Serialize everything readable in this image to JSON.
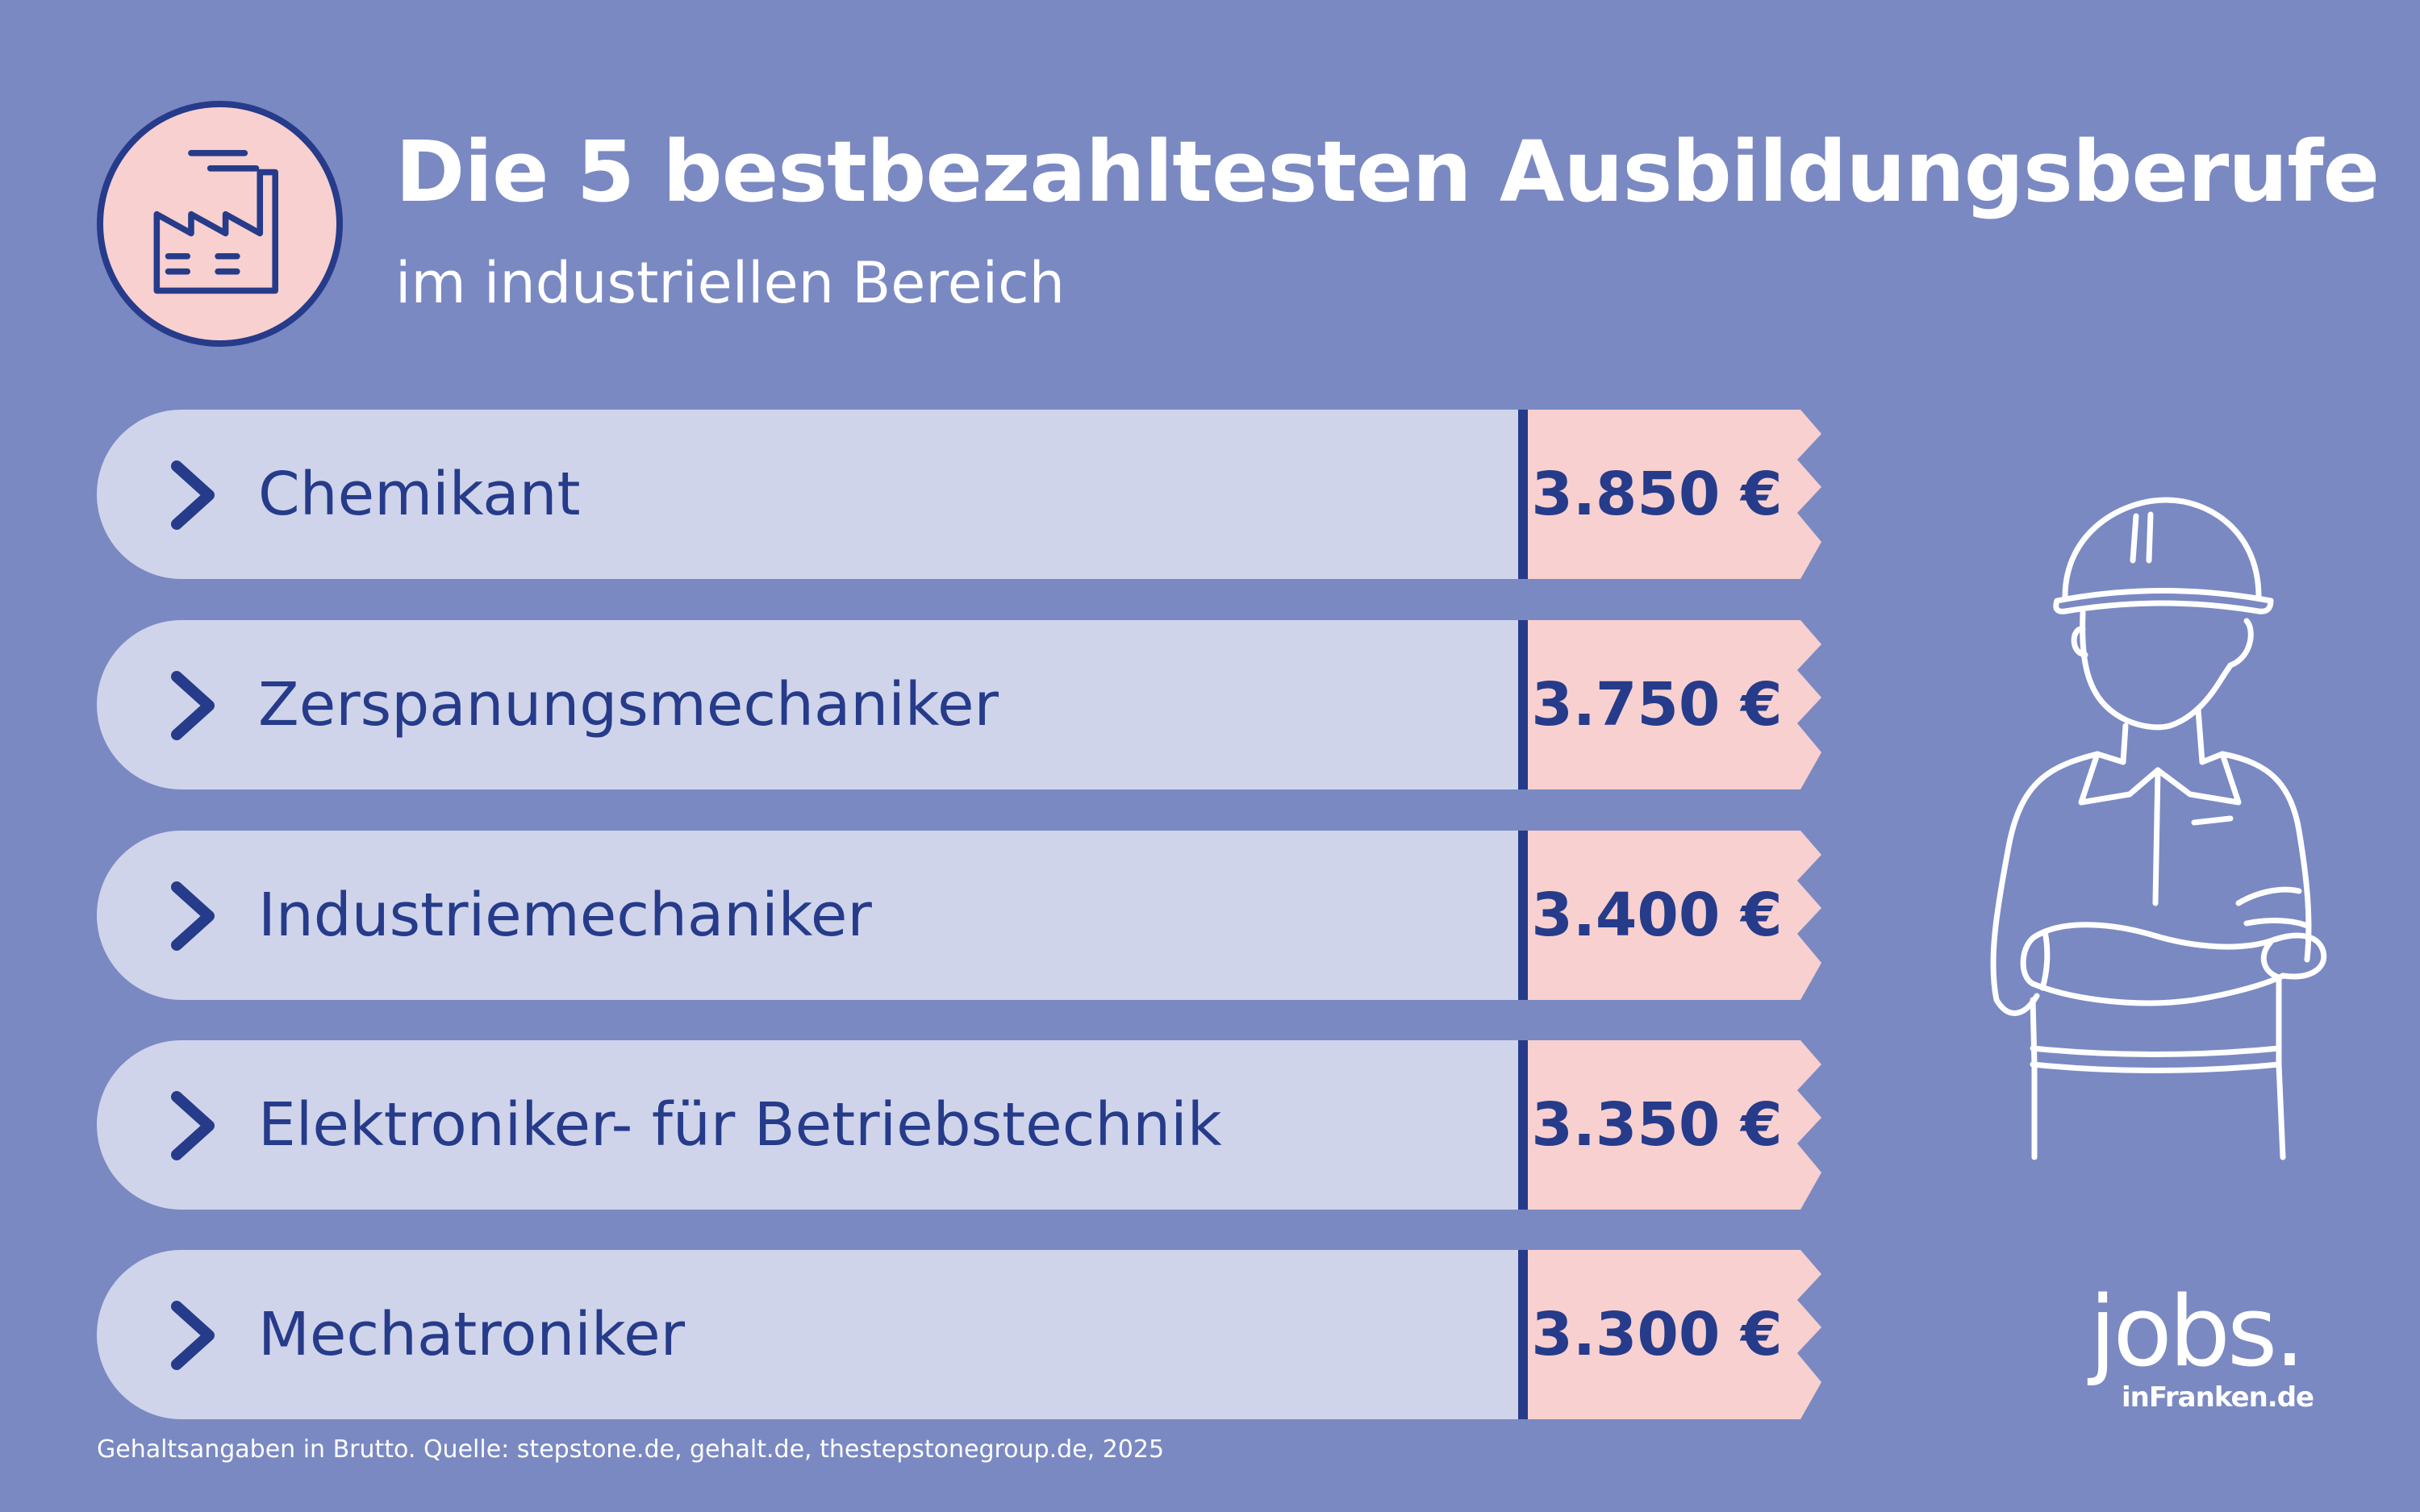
{
  "header": {
    "title": "Die 5 bestbezahltesten Ausbildungsberufe",
    "subtitle": "im industriellen Bereich",
    "icon": "factory-icon"
  },
  "ranking": [
    {
      "label": "Chemikant",
      "salary": "3.850 €"
    },
    {
      "label": "Zerspanungsmechaniker",
      "salary": "3.750 €"
    },
    {
      "label": "Industriemechaniker",
      "salary": "3.400 €"
    },
    {
      "label": "Elektroniker- für Betriebstechnik",
      "salary": "3.350 €"
    },
    {
      "label": "Mechatroniker",
      "salary": "3.300 €"
    }
  ],
  "illustration": "construction-worker-icon",
  "brand": {
    "logo_text": "jobs.",
    "logo_sub": "inFranken.de"
  },
  "footnote": "Gehaltsangaben in Brutto. Quelle: stepstone.de, gehalt.de, thestepstonegroup.de, 2025",
  "colors": {
    "background": "#7a89c2",
    "row_bar": "#cfd4ea",
    "price_tag": "#f7d0cf",
    "accent_navy": "#263b8a",
    "text_white": "#ffffff"
  }
}
